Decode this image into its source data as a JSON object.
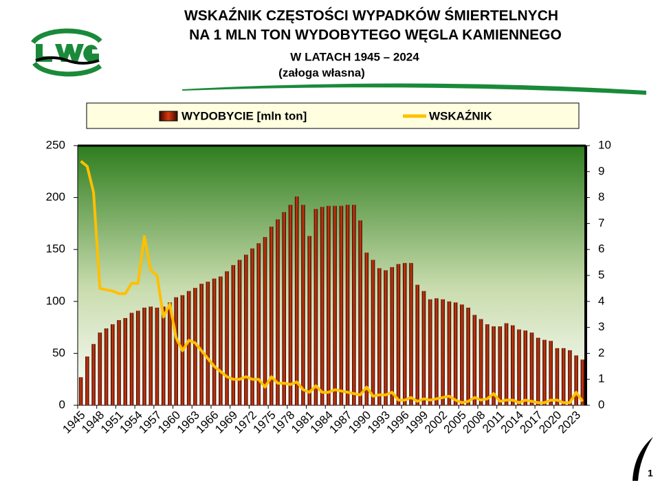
{
  "title_lines": [
    "WSKAŹNIK CZĘSTOŚCI WYPADKÓW ŚMIERTELNYCH",
    "NA 1 MLN TON WYDOBYTEGO WĘGLA KAMIENNEGO",
    "W LATACH  1945 – 2024",
    "(załoga własna)"
  ],
  "page_number": "1",
  "chart_data": {
    "type": "bar",
    "categories": [
      "1945",
      null,
      null,
      "1948",
      null,
      null,
      "1951",
      null,
      null,
      "1954",
      null,
      null,
      "1957",
      null,
      null,
      "1960",
      null,
      null,
      "1963",
      null,
      null,
      "1966",
      null,
      null,
      "1969",
      null,
      null,
      "1972",
      null,
      null,
      "1975",
      null,
      null,
      "1978",
      null,
      null,
      "1981",
      null,
      null,
      "1984",
      null,
      null,
      "1987",
      null,
      null,
      "1990",
      null,
      null,
      "1993",
      null,
      null,
      "1996",
      null,
      null,
      "1999",
      null,
      null,
      "2002",
      null,
      null,
      "2005",
      null,
      null,
      "2008",
      null,
      null,
      "2011",
      null,
      null,
      "2014",
      null,
      null,
      "2017",
      null,
      null,
      "2020",
      null,
      null,
      "2023",
      null
    ],
    "series": [
      {
        "name": "WYDOBYCIE [mln ton]",
        "color": "#d83a10",
        "values": [
          27,
          47,
          59,
          70,
          74,
          78,
          82,
          84,
          89,
          91,
          94,
          95,
          94,
          95,
          99,
          104,
          106,
          110,
          113,
          117,
          119,
          122,
          124,
          129,
          135,
          140,
          145,
          151,
          156,
          162,
          172,
          179,
          186,
          193,
          201,
          193,
          163,
          189,
          191,
          192,
          192,
          192,
          193,
          193,
          178,
          147,
          140,
          132,
          130,
          133,
          136,
          137,
          137,
          116,
          110,
          102,
          103,
          102,
          100,
          99,
          97,
          94,
          87,
          83,
          78,
          76,
          76,
          79,
          77,
          73,
          72,
          70,
          65,
          63,
          62,
          55,
          55,
          53,
          48,
          44
        ]
      },
      {
        "name": "WSKAŹNIK",
        "color": "#ffc000",
        "type": "line",
        "axis": "y2",
        "values": [
          9.4,
          9.2,
          8.2,
          4.5,
          4.45,
          4.4,
          4.3,
          4.3,
          4.7,
          4.7,
          6.5,
          5.2,
          5.0,
          3.4,
          3.9,
          2.6,
          2.1,
          2.5,
          2.4,
          2.1,
          1.8,
          1.5,
          1.3,
          1.1,
          1.0,
          1.0,
          1.1,
          1.0,
          1.0,
          0.7,
          1.1,
          0.85,
          0.85,
          0.8,
          0.9,
          0.6,
          0.5,
          0.75,
          0.5,
          0.5,
          0.6,
          0.55,
          0.5,
          0.45,
          0.4,
          0.7,
          0.35,
          0.4,
          0.4,
          0.5,
          0.2,
          0.2,
          0.3,
          0.15,
          0.25,
          0.2,
          0.25,
          0.3,
          0.35,
          0.2,
          0.1,
          0.15,
          0.3,
          0.2,
          0.25,
          0.45,
          0.15,
          0.2,
          0.2,
          0.1,
          0.2,
          0.15,
          0.1,
          0.1,
          0.2,
          0.2,
          0.1,
          0.1,
          0.5,
          0.15
        ]
      }
    ],
    "ylim": [
      0,
      250
    ],
    "yticks": [
      0,
      50,
      100,
      150,
      200,
      250
    ],
    "y2lim": [
      0,
      10
    ],
    "y2ticks": [
      0,
      1,
      2,
      3,
      4,
      5,
      6,
      7,
      8,
      9,
      10
    ],
    "legend": "top"
  }
}
